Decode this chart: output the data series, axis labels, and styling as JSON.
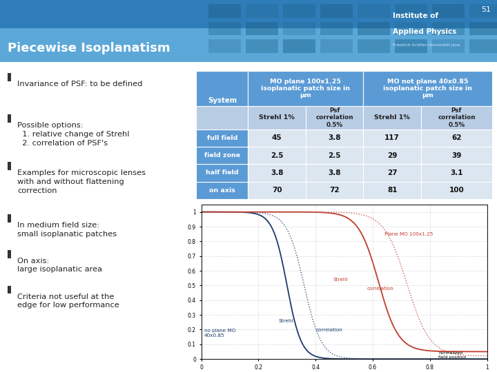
{
  "title": "Piecewise Isoplanatism",
  "slide_number": "51",
  "background_color": "#ffffff",
  "bullet_points": [
    "Invariance of PSF: to be defined",
    "Possible options:\n  1. relative change of Strehl\n  2. correlation of PSF's",
    "Examples for microscopic lenses\nwith and without flattening\ncorrection",
    "In medium field size:\nsmall isoplanatic patches",
    "On axis:\nlarge isoplanatic area",
    "Criteria not useful at the\nedge for low performance"
  ],
  "table_header_bg": "#5b9bd5",
  "table_subheader_bg": "#b8cce4",
  "table_row_label_bg": "#5b9bd5",
  "table_data_bg": "#dce6f1",
  "table_rows": [
    {
      "label": "on axis",
      "values": [
        "70",
        "72",
        "81",
        "100"
      ]
    },
    {
      "label": "half field",
      "values": [
        "3.8",
        "3.8",
        "27",
        "3.1"
      ]
    },
    {
      "label": "field zone",
      "values": [
        "2.5",
        "2.5",
        "29",
        "39"
      ]
    },
    {
      "label": "full field",
      "values": [
        "45",
        "3.8",
        "117",
        "62"
      ]
    }
  ],
  "header_blue_top": "#3a7fc1",
  "header_blue_bottom": "#5ba3d9",
  "inst_text1": "Institute of",
  "inst_text2": "Applied Physics",
  "inst_text3": "Friedrich-Schiller-Universität Jena",
  "title_fontsize": 13,
  "bullet_fontsize": 8.2,
  "table_header_fontsize": 6.8,
  "table_data_fontsize": 7.5
}
